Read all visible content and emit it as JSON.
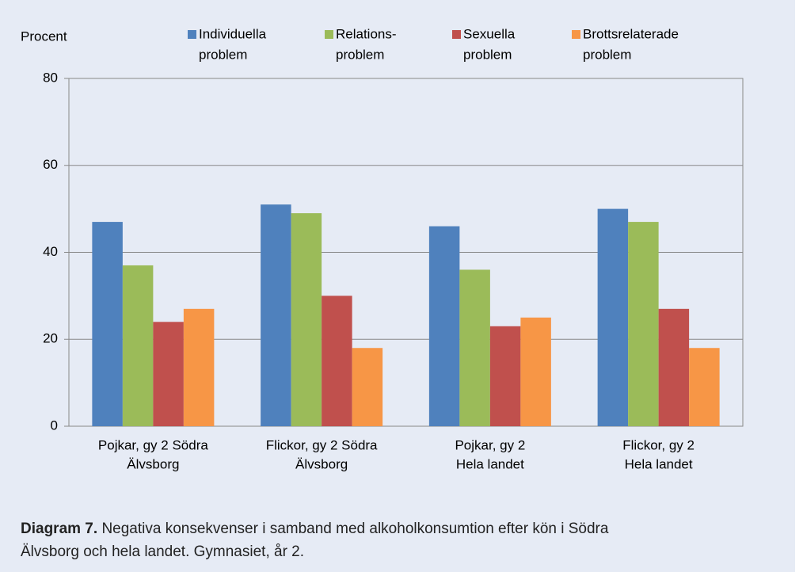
{
  "chart_data": {
    "type": "bar",
    "y_label": "Procent",
    "categories": [
      [
        "Pojkar, gy 2 Södra",
        "Älvsborg"
      ],
      [
        "Flickor, gy 2 Södra",
        "Älvsborg"
      ],
      [
        "Pojkar, gy 2",
        "Hela landet"
      ],
      [
        "Flickor, gy 2",
        "Hela landet"
      ]
    ],
    "series": [
      {
        "name": [
          "Individuella",
          "problem"
        ],
        "color": "#4f81bd",
        "values": [
          47,
          51,
          46,
          50
        ]
      },
      {
        "name": [
          "Relations-",
          "problem"
        ],
        "color": "#9bbb59",
        "values": [
          37,
          49,
          36,
          47
        ]
      },
      {
        "name": [
          "Sexuella",
          "problem"
        ],
        "color": "#c0504d",
        "values": [
          24,
          30,
          23,
          27
        ]
      },
      {
        "name": [
          "Brottsrelaterade",
          "problem"
        ],
        "color": "#f79646",
        "values": [
          27,
          18,
          25,
          18
        ]
      }
    ],
    "ylim": [
      0,
      80
    ],
    "yticks": [
      0,
      20,
      40,
      60,
      80
    ],
    "grid": true,
    "legend": "top"
  },
  "caption_label": "Diagram 7.",
  "caption": [
    "Negativa konsekvenser i samband med alkoholkonsumtion efter kön i Södra",
    "Älvsborg och hela landet. Gymnasiet, år 2."
  ]
}
